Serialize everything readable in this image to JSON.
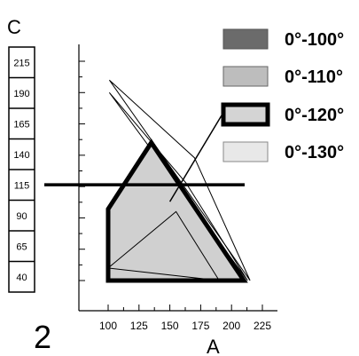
{
  "labels": {
    "top_letter": "C",
    "bottom_number": "2",
    "x_axis_letter": "A"
  },
  "left_scale": {
    "values": [
      "215",
      "190",
      "165",
      "140",
      "115",
      "90",
      "65",
      "40"
    ]
  },
  "legend": {
    "items": [
      {
        "label": "0°-100°",
        "fill": "#6b6b6b",
        "stroke": "#555555",
        "stroke_width": "thin"
      },
      {
        "label": "0°-110°",
        "fill": "#bdbdbd",
        "stroke": "#666666",
        "stroke_width": "thin"
      },
      {
        "label": "0°-120°",
        "fill": "#d4d4d4",
        "stroke": "#000000",
        "stroke_width": "thick"
      },
      {
        "label": "0°-130°",
        "fill": "#e8e8e8",
        "stroke": "#888888",
        "stroke_width": "thin"
      }
    ]
  },
  "chart_data": {
    "type": "polygon-diagram",
    "x_ticks": [
      "100",
      "125",
      "150",
      "175",
      "200",
      "225"
    ],
    "xlim": [
      100,
      225
    ],
    "ylim": [
      40,
      215
    ],
    "reference_line_y": 115,
    "pointer_line": {
      "from": [
        150,
        103
      ],
      "to": [
        197,
        149
      ]
    },
    "polygons": [
      {
        "name": "0°-120°",
        "points": [
          [
            100,
            40
          ],
          [
            100,
            97
          ],
          [
            135,
            150
          ],
          [
            210,
            40
          ]
        ]
      },
      {
        "name": "0°-110°",
        "points": [
          [
            100,
            50
          ],
          [
            155,
            95
          ],
          [
            190,
            40
          ]
        ]
      },
      {
        "name": "0°-130° outer",
        "points": [
          [
            101,
            200
          ],
          [
            170,
            138
          ],
          [
            215,
            40
          ]
        ]
      },
      {
        "name": "0°-130° inner",
        "points": [
          [
            101,
            190
          ],
          [
            163,
            118
          ],
          [
            213,
            40
          ]
        ]
      }
    ]
  }
}
